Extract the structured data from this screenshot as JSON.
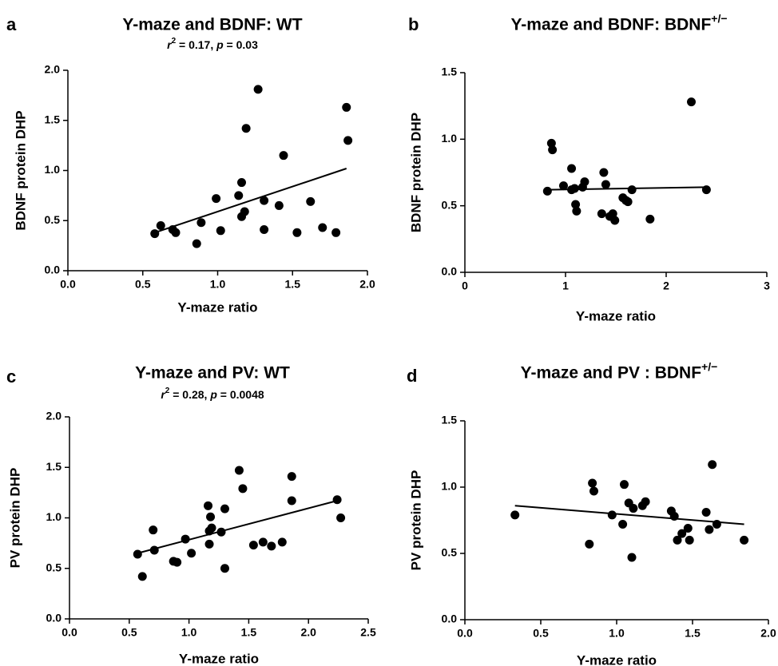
{
  "chart_data": [
    {
      "panel": "a",
      "type": "scatter",
      "title": "Y-maze and BDNF: WT",
      "stat_r2": "0.17",
      "stat_p": "0.03",
      "xlabel": "Y-maze ratio",
      "ylabel": "BDNF protein DHP",
      "xlim": [
        0,
        2.0
      ],
      "ylim": [
        0,
        2.0
      ],
      "xticks": [
        "0.0",
        "0.5",
        "1.0",
        "1.5",
        "2.0"
      ],
      "yticks": [
        "0.0",
        "0.5",
        "1.0",
        "1.5",
        "2.0"
      ],
      "points": [
        [
          0.58,
          0.37
        ],
        [
          0.62,
          0.45
        ],
        [
          0.7,
          0.41
        ],
        [
          0.72,
          0.38
        ],
        [
          0.86,
          0.27
        ],
        [
          0.89,
          0.48
        ],
        [
          0.99,
          0.72
        ],
        [
          1.02,
          0.4
        ],
        [
          1.14,
          0.75
        ],
        [
          1.16,
          0.88
        ],
        [
          1.16,
          0.54
        ],
        [
          1.18,
          0.59
        ],
        [
          1.19,
          1.42
        ],
        [
          1.27,
          1.81
        ],
        [
          1.31,
          0.7
        ],
        [
          1.31,
          0.41
        ],
        [
          1.41,
          0.65
        ],
        [
          1.44,
          1.15
        ],
        [
          1.53,
          0.38
        ],
        [
          1.62,
          0.69
        ],
        [
          1.7,
          0.43
        ],
        [
          1.79,
          0.38
        ],
        [
          1.86,
          1.63
        ],
        [
          1.87,
          1.3
        ]
      ],
      "trend": [
        [
          0.58,
          0.38
        ],
        [
          1.86,
          1.02
        ]
      ]
    },
    {
      "panel": "b",
      "type": "scatter",
      "title": "Y-maze and BDNF: BDNF",
      "title_sup": "+/−",
      "xlabel": "Y-maze ratio",
      "ylabel": "BDNF protein DHP",
      "xlim": [
        0,
        3
      ],
      "ylim": [
        0,
        1.5
      ],
      "xticks": [
        "0",
        "1",
        "2",
        "3"
      ],
      "yticks": [
        "0.0",
        "0.5",
        "1.0",
        "1.5"
      ],
      "points": [
        [
          0.82,
          0.61
        ],
        [
          0.86,
          0.97
        ],
        [
          0.87,
          0.92
        ],
        [
          0.98,
          0.65
        ],
        [
          1.06,
          0.78
        ],
        [
          1.06,
          0.62
        ],
        [
          1.09,
          0.63
        ],
        [
          1.1,
          0.51
        ],
        [
          1.11,
          0.46
        ],
        [
          1.17,
          0.64
        ],
        [
          1.19,
          0.68
        ],
        [
          1.36,
          0.44
        ],
        [
          1.38,
          0.75
        ],
        [
          1.4,
          0.66
        ],
        [
          1.44,
          0.42
        ],
        [
          1.47,
          0.44
        ],
        [
          1.49,
          0.39
        ],
        [
          1.57,
          0.56
        ],
        [
          1.6,
          0.54
        ],
        [
          1.62,
          0.53
        ],
        [
          1.66,
          0.62
        ],
        [
          1.84,
          0.4
        ],
        [
          2.25,
          1.28
        ],
        [
          2.4,
          0.62
        ]
      ],
      "trend": [
        [
          0.82,
          0.62
        ],
        [
          2.4,
          0.64
        ]
      ]
    },
    {
      "panel": "c",
      "type": "scatter",
      "title": "Y-maze and PV: WT",
      "stat_r2": "0.28",
      "stat_p": "0.0048",
      "xlabel": "Y-maze ratio",
      "ylabel": "PV protein DHP",
      "xlim": [
        0,
        2.5
      ],
      "ylim": [
        0,
        2.0
      ],
      "xticks": [
        "0.0",
        "0.5",
        "1.0",
        "1.5",
        "2.0",
        "2.5"
      ],
      "yticks": [
        "0.0",
        "0.5",
        "1.0",
        "1.5",
        "2.0"
      ],
      "points": [
        [
          0.57,
          0.64
        ],
        [
          0.61,
          0.42
        ],
        [
          0.7,
          0.88
        ],
        [
          0.71,
          0.68
        ],
        [
          0.87,
          0.57
        ],
        [
          0.9,
          0.56
        ],
        [
          0.97,
          0.79
        ],
        [
          1.02,
          0.65
        ],
        [
          1.16,
          1.12
        ],
        [
          1.17,
          0.74
        ],
        [
          1.17,
          0.87
        ],
        [
          1.18,
          1.01
        ],
        [
          1.19,
          0.9
        ],
        [
          1.27,
          0.86
        ],
        [
          1.3,
          1.09
        ],
        [
          1.3,
          0.5
        ],
        [
          1.42,
          1.47
        ],
        [
          1.45,
          1.29
        ],
        [
          1.54,
          0.73
        ],
        [
          1.62,
          0.76
        ],
        [
          1.69,
          0.72
        ],
        [
          1.78,
          0.76
        ],
        [
          1.86,
          1.41
        ],
        [
          1.86,
          1.17
        ],
        [
          2.24,
          1.18
        ],
        [
          2.27,
          1.0
        ]
      ],
      "trend": [
        [
          0.57,
          0.65
        ],
        [
          2.24,
          1.17
        ]
      ]
    },
    {
      "panel": "d",
      "type": "scatter",
      "title": "Y-maze and PV : BDNF",
      "title_sup": "+/−",
      "xlabel": "Y-maze ratio",
      "ylabel": "PV protein DHP",
      "xlim": [
        0,
        2.0
      ],
      "ylim": [
        0,
        1.5
      ],
      "xticks": [
        "0.0",
        "0.5",
        "1.0",
        "1.5",
        "2.0"
      ],
      "yticks": [
        "0.0",
        "0.5",
        "1.0",
        "1.5"
      ],
      "points": [
        [
          0.33,
          0.79
        ],
        [
          0.82,
          0.57
        ],
        [
          0.84,
          1.03
        ],
        [
          0.85,
          0.97
        ],
        [
          0.97,
          0.79
        ],
        [
          1.04,
          0.72
        ],
        [
          1.05,
          1.02
        ],
        [
          1.08,
          0.88
        ],
        [
          1.1,
          0.47
        ],
        [
          1.11,
          0.84
        ],
        [
          1.17,
          0.86
        ],
        [
          1.19,
          0.89
        ],
        [
          1.36,
          0.82
        ],
        [
          1.38,
          0.78
        ],
        [
          1.4,
          0.6
        ],
        [
          1.43,
          0.65
        ],
        [
          1.47,
          0.69
        ],
        [
          1.48,
          0.6
        ],
        [
          1.59,
          0.81
        ],
        [
          1.61,
          0.68
        ],
        [
          1.63,
          1.17
        ],
        [
          1.66,
          0.72
        ],
        [
          1.84,
          0.6
        ]
      ],
      "trend": [
        [
          0.33,
          0.86
        ],
        [
          1.84,
          0.72
        ]
      ]
    }
  ]
}
